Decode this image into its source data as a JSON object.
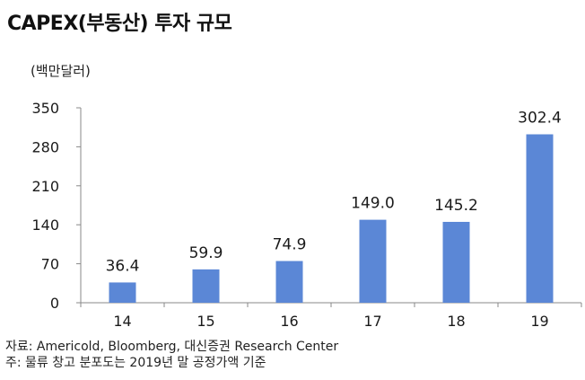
{
  "title": "CAPEX(부동산) 투자 규모",
  "unit_label": "(백만달러)",
  "notes": {
    "source": "자료: Americold, Bloomberg, 대신증권 Research Center",
    "note": "주: 물류 창고 분포도는 2019년 말 공정가액 기준"
  },
  "colors": {
    "bar": "#5b87d6",
    "axis": "#888888"
  },
  "chart_data": {
    "type": "bar",
    "title": "CAPEX(부동산) 투자 규모",
    "ylabel": "(백만달러)",
    "xlabel": "",
    "categories": [
      "14",
      "15",
      "16",
      "17",
      "18",
      "19"
    ],
    "values": [
      36.4,
      59.9,
      74.9,
      149.0,
      145.2,
      302.4
    ],
    "value_labels": [
      "36.4",
      "59.9",
      "74.9",
      "149.0",
      "145.2",
      "302.4"
    ],
    "ylim": [
      0,
      350
    ],
    "yticks": [
      0,
      70,
      140,
      210,
      280,
      350
    ],
    "grid": false,
    "legend": "none"
  }
}
